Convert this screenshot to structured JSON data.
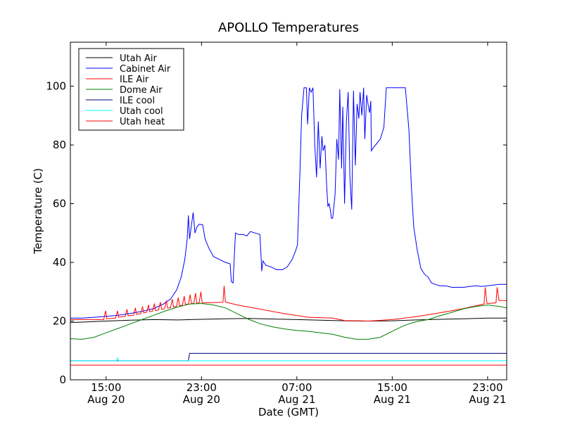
{
  "chart_data": {
    "type": "line",
    "title": "APOLLO Temperatures",
    "xlabel": "Date (GMT)",
    "ylabel": "Temperature (C)",
    "xlim": [
      12.0,
      48.6
    ],
    "ylim": [
      0,
      115
    ],
    "yticks": [
      0,
      20,
      40,
      60,
      80,
      100
    ],
    "xticks": [
      {
        "t": 15,
        "line1": "15:00",
        "line2": "Aug 20"
      },
      {
        "t": 23,
        "line1": "23:00",
        "line2": "Aug 20"
      },
      {
        "t": 31,
        "line1": "07:00",
        "line2": "Aug 21"
      },
      {
        "t": 39,
        "line1": "15:00",
        "line2": "Aug 21"
      },
      {
        "t": 47,
        "line1": "23:00",
        "line2": "Aug 21"
      }
    ],
    "legend_position": "top-left",
    "series": [
      {
        "name": "Utah Air",
        "color": "#000000",
        "points": [
          [
            12,
            19.5
          ],
          [
            15,
            20
          ],
          [
            17,
            20.3
          ],
          [
            19,
            20.5
          ],
          [
            21,
            20.4
          ],
          [
            23,
            20.6
          ],
          [
            25,
            20.8
          ],
          [
            27,
            20.9
          ],
          [
            29,
            20.7
          ],
          [
            31,
            20.5
          ],
          [
            33,
            20.3
          ],
          [
            35,
            20.1
          ],
          [
            37,
            20
          ],
          [
            39,
            20.1
          ],
          [
            41,
            20.4
          ],
          [
            43,
            20.6
          ],
          [
            45,
            20.8
          ],
          [
            47,
            21
          ],
          [
            48.6,
            21
          ]
        ]
      },
      {
        "name": "Cabinet Air",
        "color": "#0000ff",
        "points": [
          [
            12,
            21
          ],
          [
            13,
            21
          ],
          [
            14,
            21.3
          ],
          [
            15,
            21.6
          ],
          [
            16,
            22
          ],
          [
            17,
            22.6
          ],
          [
            18,
            23.3
          ],
          [
            19,
            24.3
          ],
          [
            19.8,
            25.8
          ],
          [
            20.4,
            27.5
          ],
          [
            20.9,
            30.5
          ],
          [
            21.3,
            35
          ],
          [
            21.6,
            41
          ],
          [
            21.8,
            48
          ],
          [
            21.9,
            56
          ],
          [
            22,
            48
          ],
          [
            22.2,
            54
          ],
          [
            22.3,
            57
          ],
          [
            22.45,
            50
          ],
          [
            22.6,
            52
          ],
          [
            22.8,
            53
          ],
          [
            23.1,
            52.8
          ],
          [
            23.3,
            48
          ],
          [
            23.6,
            45
          ],
          [
            24,
            42
          ],
          [
            24.5,
            41
          ],
          [
            25,
            40
          ],
          [
            25.4,
            39.5
          ],
          [
            25.5,
            33.5
          ],
          [
            25.65,
            33
          ],
          [
            25.75,
            42
          ],
          [
            25.85,
            50
          ],
          [
            26.1,
            49.5
          ],
          [
            26.5,
            49.5
          ],
          [
            26.8,
            49
          ],
          [
            27.1,
            50.5
          ],
          [
            27.5,
            50
          ],
          [
            27.9,
            49.5
          ],
          [
            28,
            42
          ],
          [
            28.05,
            37
          ],
          [
            28.15,
            40.5
          ],
          [
            28.4,
            39
          ],
          [
            28.8,
            38.5
          ],
          [
            29.3,
            37.5
          ],
          [
            29.8,
            37.5
          ],
          [
            30.2,
            38.5
          ],
          [
            30.6,
            41
          ],
          [
            30.9,
            44
          ],
          [
            31.05,
            46
          ],
          [
            31.25,
            70
          ],
          [
            31.4,
            90
          ],
          [
            31.6,
            99.5
          ],
          [
            31.8,
            99.5
          ],
          [
            31.9,
            87
          ],
          [
            32.05,
            99.5
          ],
          [
            32.2,
            98
          ],
          [
            32.35,
            99.5
          ],
          [
            32.5,
            80
          ],
          [
            32.65,
            69
          ],
          [
            32.8,
            88
          ],
          [
            32.95,
            72
          ],
          [
            33.1,
            83
          ],
          [
            33.2,
            78
          ],
          [
            33.35,
            80
          ],
          [
            33.5,
            66
          ],
          [
            33.6,
            59
          ],
          [
            33.7,
            60
          ],
          [
            33.8,
            58
          ],
          [
            33.9,
            55
          ],
          [
            34,
            55
          ],
          [
            34.2,
            63
          ],
          [
            34.35,
            82
          ],
          [
            34.5,
            75
          ],
          [
            34.6,
            99
          ],
          [
            34.75,
            72
          ],
          [
            34.85,
            93
          ],
          [
            35,
            60
          ],
          [
            35.15,
            88
          ],
          [
            35.3,
            98
          ],
          [
            35.45,
            69
          ],
          [
            35.6,
            58
          ],
          [
            35.75,
            98.5
          ],
          [
            35.9,
            73
          ],
          [
            36.05,
            94
          ],
          [
            36.2,
            89
          ],
          [
            36.3,
            98
          ],
          [
            36.45,
            90
          ],
          [
            36.6,
            99.5
          ],
          [
            36.7,
            82
          ],
          [
            36.85,
            97
          ],
          [
            37,
            93
          ],
          [
            37.1,
            91
          ],
          [
            37.2,
            95
          ],
          [
            37.25,
            78
          ],
          [
            37.4,
            79
          ],
          [
            37.7,
            80.5
          ],
          [
            38,
            82
          ],
          [
            38.3,
            86
          ],
          [
            38.5,
            99.5
          ],
          [
            38.9,
            99.5
          ],
          [
            39.3,
            99.5
          ],
          [
            39.7,
            99.5
          ],
          [
            40.1,
            99.5
          ],
          [
            40.4,
            85
          ],
          [
            40.6,
            66
          ],
          [
            40.8,
            52
          ],
          [
            41.1,
            44
          ],
          [
            41.4,
            38
          ],
          [
            41.7,
            36
          ],
          [
            42,
            35
          ],
          [
            42.3,
            33
          ],
          [
            42.6,
            32.5
          ],
          [
            43,
            32
          ],
          [
            43.5,
            32
          ],
          [
            44,
            31.5
          ],
          [
            44.5,
            31.5
          ],
          [
            45,
            31.5
          ],
          [
            45.5,
            31.8
          ],
          [
            46,
            32
          ],
          [
            46.5,
            31.8
          ],
          [
            47,
            32
          ],
          [
            47.5,
            32.3
          ],
          [
            48,
            32.5
          ],
          [
            48.6,
            32.5
          ]
        ]
      },
      {
        "name": "ILE Air",
        "color": "#ff0000",
        "points": [
          [
            12,
            20.5
          ],
          [
            14.8,
            20.5
          ],
          [
            14.95,
            23.5
          ],
          [
            15.05,
            20.8
          ],
          [
            15.8,
            21
          ],
          [
            15.95,
            23.5
          ],
          [
            16.05,
            21.3
          ],
          [
            16.6,
            21.6
          ],
          [
            16.75,
            24
          ],
          [
            16.85,
            21.8
          ],
          [
            17.3,
            22
          ],
          [
            17.45,
            24.5
          ],
          [
            17.55,
            22.3
          ],
          [
            17.9,
            22.5
          ],
          [
            18.05,
            25
          ],
          [
            18.15,
            22.8
          ],
          [
            18.4,
            23
          ],
          [
            18.55,
            25.5
          ],
          [
            18.65,
            23.2
          ],
          [
            18.9,
            23.4
          ],
          [
            19.05,
            26
          ],
          [
            19.15,
            23.6
          ],
          [
            19.4,
            23.8
          ],
          [
            19.55,
            26.5
          ],
          [
            19.65,
            24
          ],
          [
            19.9,
            24.2
          ],
          [
            20.05,
            27
          ],
          [
            20.15,
            24.4
          ],
          [
            20.4,
            24.6
          ],
          [
            20.55,
            27.5
          ],
          [
            20.65,
            24.8
          ],
          [
            20.9,
            25
          ],
          [
            21.05,
            28
          ],
          [
            21.15,
            25.2
          ],
          [
            21.4,
            25.4
          ],
          [
            21.55,
            28.5
          ],
          [
            21.65,
            25.6
          ],
          [
            21.9,
            25.8
          ],
          [
            22.05,
            29
          ],
          [
            22.15,
            26
          ],
          [
            22.35,
            26
          ],
          [
            22.5,
            29.5
          ],
          [
            22.6,
            26.1
          ],
          [
            22.8,
            26.2
          ],
          [
            22.95,
            30
          ],
          [
            23.05,
            26.2
          ],
          [
            24,
            26.3
          ],
          [
            24.8,
            26.4
          ],
          [
            24.9,
            32
          ],
          [
            25,
            26.5
          ],
          [
            26,
            25.5
          ],
          [
            28,
            24
          ],
          [
            30,
            22.5
          ],
          [
            32,
            21.3
          ],
          [
            34,
            21
          ],
          [
            35,
            20.2
          ],
          [
            37,
            20
          ],
          [
            39,
            20.5
          ],
          [
            41,
            21.5
          ],
          [
            43,
            22.8
          ],
          [
            45,
            24.3
          ],
          [
            46.7,
            25.8
          ],
          [
            46.8,
            31.5
          ],
          [
            46.95,
            26
          ],
          [
            47.7,
            26.2
          ],
          [
            47.8,
            31.5
          ],
          [
            47.95,
            27
          ],
          [
            48.6,
            27
          ]
        ]
      },
      {
        "name": "Dome Air",
        "color": "#008000",
        "points": [
          [
            12,
            14
          ],
          [
            13,
            13.8
          ],
          [
            14,
            14.5
          ],
          [
            15,
            16
          ],
          [
            16,
            17.5
          ],
          [
            17,
            19
          ],
          [
            18,
            20.5
          ],
          [
            19,
            22
          ],
          [
            20,
            23.5
          ],
          [
            21,
            24.8
          ],
          [
            22,
            25.8
          ],
          [
            23,
            26
          ],
          [
            24,
            25.5
          ],
          [
            25,
            24.5
          ],
          [
            26,
            22.5
          ],
          [
            27,
            20.5
          ],
          [
            28,
            19
          ],
          [
            29,
            18
          ],
          [
            30,
            17.3
          ],
          [
            31,
            16.8
          ],
          [
            32,
            16.5
          ],
          [
            33,
            16
          ],
          [
            34,
            15.5
          ],
          [
            35,
            14.5
          ],
          [
            36,
            13.8
          ],
          [
            37,
            13.8
          ],
          [
            38,
            14.5
          ],
          [
            39,
            16.5
          ],
          [
            40,
            18.5
          ],
          [
            41,
            19.8
          ],
          [
            42,
            20.5
          ],
          [
            43,
            21.8
          ],
          [
            44,
            23
          ],
          [
            45,
            24.2
          ],
          [
            46,
            25
          ],
          [
            47,
            25.5
          ],
          [
            48,
            25
          ],
          [
            48.6,
            24.5
          ]
        ]
      },
      {
        "name": "ILE cool",
        "color": "#000080",
        "points": [
          [
            12,
            6.5
          ],
          [
            21.9,
            6.5
          ],
          [
            22,
            9
          ],
          [
            48.6,
            9
          ]
        ]
      },
      {
        "name": "Utah cool",
        "color": "#00ffff",
        "points": [
          [
            12,
            6.5
          ],
          [
            15.9,
            6.5
          ],
          [
            15.95,
            7.5
          ],
          [
            16.05,
            6.5
          ],
          [
            48.6,
            6.5
          ]
        ]
      },
      {
        "name": "Utah heat",
        "color": "#ff0000",
        "points": [
          [
            12,
            5
          ],
          [
            48.6,
            5
          ]
        ]
      }
    ]
  }
}
